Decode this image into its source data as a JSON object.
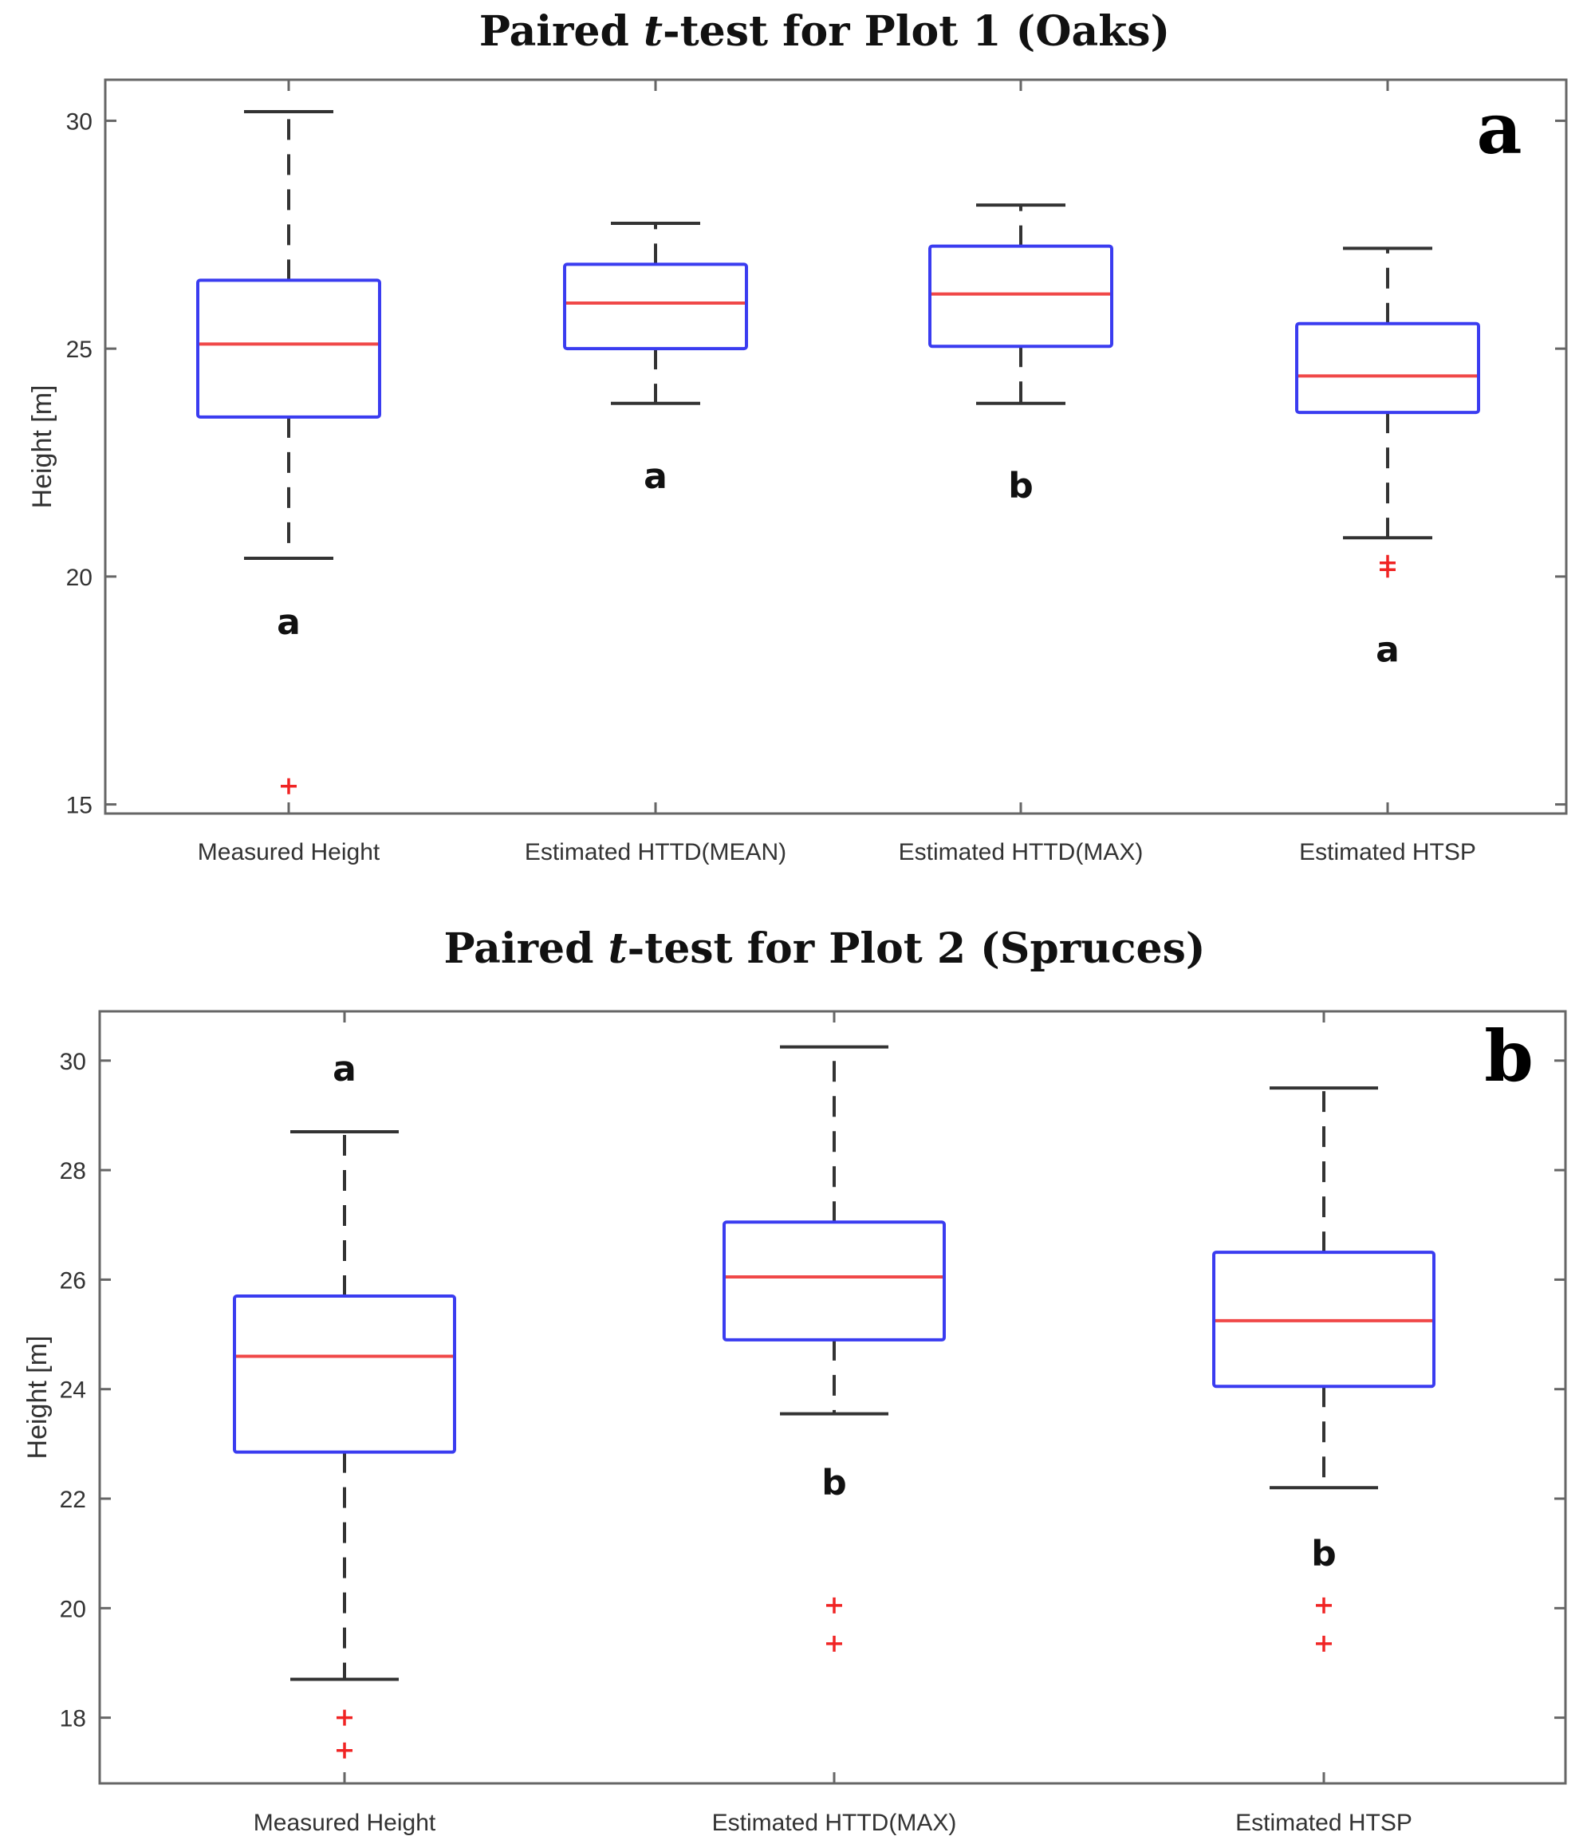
{
  "colors": {
    "box": "#3a3cf0",
    "median": "#f04848",
    "whisker": "#333333",
    "outlier": "#f02424",
    "axis": "#666666"
  },
  "chart_data": [
    {
      "type": "box",
      "title_prefix": "Paired ",
      "title_italic": "t",
      "title_suffix": "-test for Plot 1 (Oaks)",
      "panel_label": "a",
      "ylabel": "Height [m]",
      "ylim": [
        14.8,
        30.9
      ],
      "yticks": [
        15,
        20,
        25,
        30
      ],
      "categories": [
        "Measured Height",
        "Estimated HTTD(MEAN)",
        "Estimated HTTD(MAX)",
        "Estimated HTSP"
      ],
      "boxes": [
        {
          "whisker_low": 20.4,
          "q1": 23.5,
          "median": 25.1,
          "q3": 26.5,
          "whisker_high": 30.2,
          "outliers": [
            15.4
          ],
          "group_letter": "a",
          "letter_y": 19.0
        },
        {
          "whisker_low": 23.8,
          "q1": 25.0,
          "median": 26.0,
          "q3": 26.85,
          "whisker_high": 27.75,
          "outliers": [],
          "group_letter": "a",
          "letter_y": 22.2
        },
        {
          "whisker_low": 23.8,
          "q1": 25.05,
          "median": 26.2,
          "q3": 27.25,
          "whisker_high": 28.15,
          "outliers": [],
          "group_letter": "b",
          "letter_y": 22.0
        },
        {
          "whisker_low": 20.85,
          "q1": 23.6,
          "median": 24.4,
          "q3": 25.55,
          "whisker_high": 27.2,
          "outliers": [
            20.3,
            20.15
          ],
          "group_letter": "a",
          "letter_y": 18.4
        }
      ]
    },
    {
      "type": "box",
      "title_prefix": "Paired ",
      "title_italic": "t",
      "title_suffix": "-test for Plot 2 (Spruces)",
      "panel_label": "b",
      "ylabel": "Height [m]",
      "ylim": [
        16.8,
        30.9
      ],
      "yticks": [
        18,
        20,
        22,
        24,
        26,
        28,
        30
      ],
      "categories": [
        "Measured Height",
        "Estimated HTTD(MAX)",
        "Estimated HTSP"
      ],
      "boxes": [
        {
          "whisker_low": 18.7,
          "q1": 22.85,
          "median": 24.6,
          "q3": 25.7,
          "whisker_high": 28.7,
          "outliers": [
            18.0,
            17.4
          ],
          "group_letter": "a",
          "letter_y": 29.85
        },
        {
          "whisker_low": 23.55,
          "q1": 24.9,
          "median": 26.05,
          "q3": 27.05,
          "whisker_high": 30.25,
          "outliers": [
            20.05,
            19.35
          ],
          "group_letter": "b",
          "letter_y": 22.3
        },
        {
          "whisker_low": 22.2,
          "q1": 24.05,
          "median": 25.25,
          "q3": 26.5,
          "whisker_high": 29.5,
          "outliers": [
            20.05,
            19.35
          ],
          "group_letter": "b",
          "letter_y": 21.0
        }
      ]
    }
  ]
}
